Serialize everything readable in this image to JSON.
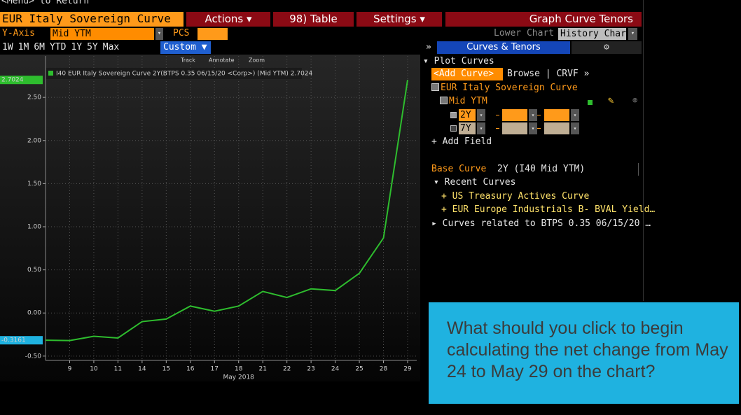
{
  "header": {
    "menu_hint": "<Menu> to Return"
  },
  "toolbar": {
    "title": "EUR Italy Sovereign Curve",
    "actions": "Actions ▾",
    "table": "98) Table",
    "settings": "Settings ▾",
    "panel_title": "Graph Curve Tenors"
  },
  "axis_bar": {
    "yaxis_label": "Y-Axis",
    "yaxis_value": "Mid YTM",
    "pcs_label": "PCS",
    "lower_chart_label": "Lower Chart",
    "lower_chart_value": "History Chart"
  },
  "periods": [
    "1W",
    "1M",
    "6M",
    "YTD",
    "1Y",
    "5Y",
    "Max"
  ],
  "custom": "Custom ▼",
  "chart_tools": [
    "Track",
    "Annotate",
    "Zoom"
  ],
  "chart_data": {
    "type": "line",
    "xlabel": "May 2018",
    "categories": [
      null,
      "9",
      "10",
      "11",
      "14",
      "15",
      "16",
      "17",
      "18",
      "21",
      "22",
      "23",
      "24",
      "25",
      "28",
      "29"
    ],
    "series": [
      {
        "name": "I40 EUR Italy Sovereign Curve 2Y(BTPS 0.35 06/15/20 <Corp>) (Mid YTM) 2.7024",
        "color": "#2ebd2e",
        "values": [
          -0.3161,
          -0.32,
          -0.27,
          -0.29,
          -0.1,
          -0.07,
          0.08,
          0.02,
          0.08,
          0.25,
          0.18,
          0.28,
          0.26,
          0.46,
          0.87,
          2.7024
        ]
      }
    ],
    "ylim": [
      -0.55,
      2.98
    ],
    "yticks": [
      {
        "value": -0.5,
        "label": "-0.50"
      },
      {
        "value": 0,
        "label": "0.00"
      },
      {
        "value": 0.5,
        "label": "0.50"
      },
      {
        "value": 1,
        "label": "1.00"
      },
      {
        "value": 1.5,
        "label": "1.50"
      },
      {
        "value": 2,
        "label": "2.00"
      },
      {
        "value": 2.5,
        "label": "2.50"
      }
    ],
    "grid": true
  },
  "panel": {
    "collapse": "»",
    "header": "Curves & Tenors",
    "plot_curves": "▾ Plot Curves",
    "add_curve": "<Add Curve>",
    "browse": "Browse | CRVF »",
    "curve": "EUR Italy Sovereign Curve",
    "field": "Mid YTM",
    "tenors": [
      "2Y",
      "7Y"
    ],
    "add_field": "+ Add Field",
    "base_curve_label": "Base Curve",
    "base_curve_value": "2Y (I40 Mid YTM)",
    "recent": "▾ Recent Curves",
    "recent_items": [
      "+ US Treasury Actives Curve",
      "+ EUR Europe Industrials B- BVAL Yield…"
    ],
    "related": "▸ Curves related to BTPS 0.35 06/15/20 …"
  },
  "question": "What should you click to begin calculating the net change from May 24 to May 29 on the chart?"
}
